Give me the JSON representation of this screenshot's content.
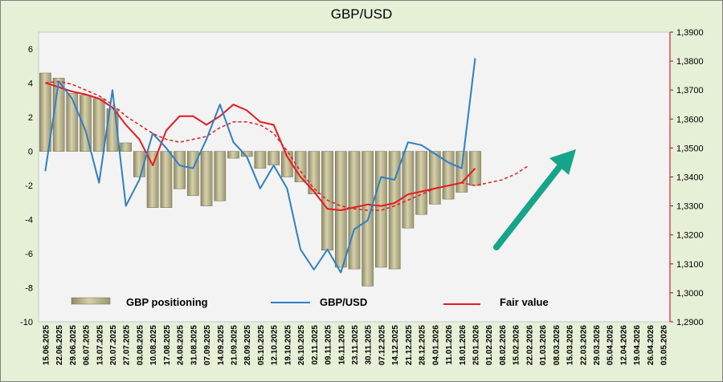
{
  "chart_data": {
    "type": "bar",
    "title": "GBP/USD",
    "x_dates": [
      "15.06.2025",
      "22.06.2025",
      "29.06.2025",
      "06.07.2025",
      "13.07.2025",
      "20.07.2025",
      "27.07.2025",
      "03.08.2025",
      "10.08.2025",
      "17.08.2025",
      "24.08.2025",
      "31.08.2025",
      "07.09.2025",
      "14.09.2025",
      "21.09.2025",
      "28.09.2025",
      "05.10.2025",
      "12.10.2025",
      "19.10.2025",
      "26.10.2025",
      "02.11.2025",
      "09.11.2025",
      "16.11.2025",
      "23.11.2025",
      "30.11.2025",
      "07.12.2025",
      "14.12.2025",
      "21.12.2025",
      "28.12.2025",
      "04.01.2026",
      "11.01.2026",
      "18.01.2026",
      "25.01.2026",
      "01.02.2026",
      "08.02.2026",
      "15.02.2026",
      "22.02.2026",
      "01.03.2026",
      "08.03.2026",
      "15.03.2026",
      "22.03.2026",
      "29.03.2026",
      "05.04.2026",
      "12.04.2026",
      "19.04.2026",
      "26.04.2026",
      "03.05.2026"
    ],
    "y_left_ticks": [
      6,
      4,
      2,
      0,
      -2,
      -4,
      -6,
      -8,
      -10
    ],
    "y_left_range": [
      -10,
      7
    ],
    "y_right_ticks": [
      "1,3900",
      "1,3800",
      "1,3700",
      "1,3600",
      "1,3500",
      "1,3400",
      "1,3300",
      "1,3200",
      "1,3100",
      "1,3000",
      "1,2900"
    ],
    "y_right_range": [
      1.29,
      1.39
    ],
    "legend": {
      "positioning": "GBP positioning",
      "price": "GBP/USD",
      "fair": "Fair value"
    },
    "colors": {
      "bars": "#b8b28a",
      "price": "#2f7fc6",
      "fair": "#e8191f",
      "arrow": "#17a58a",
      "plot_bg": "#f3f3f3",
      "outer_bg": "#e6f0d7"
    },
    "positioning_values": [
      4.6,
      4.3,
      3.4,
      3.3,
      3.1,
      2.5,
      0.5,
      -1.5,
      -3.3,
      -3.3,
      -2.2,
      -2.6,
      -3.2,
      -2.9,
      -0.4,
      -0.3,
      -1.0,
      -0.8,
      -1.5,
      -1.8,
      -2.5,
      -5.8,
      -6.8,
      -6.9,
      -7.9,
      -6.8,
      -6.9,
      -4.5,
      -3.7,
      -3.1,
      -2.8,
      -2.4,
      -2.0
    ],
    "price_values": [
      1.342,
      1.373,
      1.367,
      1.356,
      1.338,
      1.37,
      1.33,
      1.339,
      1.355,
      1.35,
      1.344,
      1.343,
      1.353,
      1.365,
      1.352,
      1.347,
      1.336,
      1.344,
      1.336,
      1.315,
      1.308,
      1.315,
      1.307,
      1.322,
      1.325,
      1.34,
      1.339,
      1.352,
      1.351,
      1.348,
      1.345,
      1.343,
      1.381
    ],
    "fair_values": [
      1.3725,
      1.371,
      1.3695,
      1.3685,
      1.367,
      1.364,
      1.358,
      1.353,
      1.344,
      1.356,
      1.361,
      1.361,
      1.358,
      1.361,
      1.365,
      1.363,
      1.359,
      1.358,
      1.347,
      1.34,
      1.335,
      1.329,
      1.3285,
      1.3295,
      1.3305,
      1.33,
      1.331,
      1.334,
      1.335,
      1.336,
      1.337,
      1.338,
      1.343
    ],
    "fair_projection_values": [
      1.3725,
      1.373,
      1.372,
      1.37,
      1.368,
      1.365,
      1.361,
      1.358,
      1.355,
      1.353,
      1.352,
      1.353,
      1.354,
      1.357,
      1.359,
      1.359,
      1.358,
      1.355,
      1.349,
      1.342,
      1.336,
      1.332,
      1.33,
      1.329,
      1.3285,
      1.3285,
      1.33,
      1.332,
      1.334,
      1.336,
      1.337,
      1.338,
      1.337,
      1.338,
      1.339,
      1.341,
      1.344
    ],
    "grid": false,
    "legend_placement": "bottom"
  }
}
